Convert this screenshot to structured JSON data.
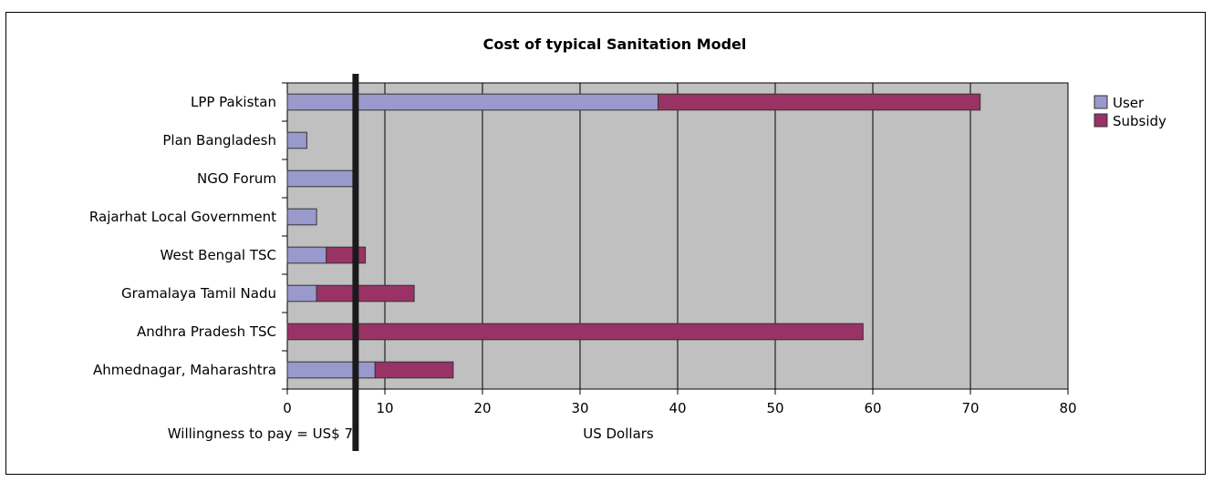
{
  "chart_data": {
    "type": "bar",
    "orientation": "horizontal",
    "stacked": true,
    "title": "Cost of typical Sanitation Model",
    "xlabel": "US Dollars",
    "ylabel": "",
    "xlim": [
      0,
      80
    ],
    "xticks": [
      0,
      10,
      20,
      30,
      40,
      50,
      60,
      70,
      80
    ],
    "grid": true,
    "legend_position": "right",
    "categories": [
      "LPP Pakistan",
      "Plan Bangladesh",
      "NGO Forum",
      "Rajarhat Local Government",
      "West Bengal TSC",
      "Gramalaya Tamil Nadu",
      "Andhra Pradesh TSC",
      "Ahmednagar, Maharashtra"
    ],
    "series": [
      {
        "name": "User",
        "color": "#9999cc",
        "values": [
          38,
          2,
          7,
          3,
          4,
          3,
          0,
          9
        ]
      },
      {
        "name": "Subsidy",
        "color": "#993366",
        "values": [
          33,
          0,
          0,
          0,
          4,
          10,
          59,
          8
        ]
      }
    ],
    "reference_line": {
      "value": 7,
      "label": "Willingness to pay = US$ 7",
      "color": "#1a1a1a"
    },
    "plot_background": "#c0c0c0"
  }
}
